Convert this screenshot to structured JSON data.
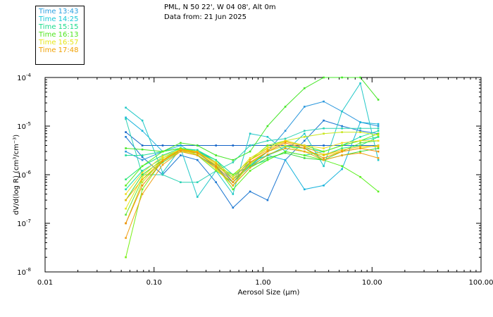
{
  "header": {
    "location": "PML, N 50 22', W 04 08', Alt 0m",
    "date": "Data from: 21 Jun 2025"
  },
  "legend": [
    {
      "label": "Time 13:43",
      "color": "#2aa0e0"
    },
    {
      "label": "Time 14:25",
      "color": "#19c8d8"
    },
    {
      "label": "Time 15:15",
      "color": "#19dc8c"
    },
    {
      "label": "Time 16:13",
      "color": "#4ee61e"
    },
    {
      "label": "Time 16:57",
      "color": "#e6e619"
    },
    {
      "label": "Time 17:48",
      "color": "#f0a000"
    }
  ],
  "chart_data": {
    "type": "line",
    "xscale": "log",
    "yscale": "log",
    "xlabel": "Aerosol Size (μm)",
    "ylabel": "dV/d(log R) (cm³/cm⁻³)",
    "xlim": [
      0.01,
      100
    ],
    "ylim": [
      1e-08,
      0.0001
    ],
    "x_ticks": [
      {
        "value": 0.01,
        "label": "0.01"
      },
      {
        "value": 0.1,
        "label": "0.10"
      },
      {
        "value": 1,
        "label": "1.00"
      },
      {
        "value": 10,
        "label": "10.00"
      },
      {
        "value": 100,
        "label": "100.00"
      }
    ],
    "y_ticks": [
      {
        "value": 1e-08,
        "mantissa": "10",
        "exp": "-8"
      },
      {
        "value": 1e-07,
        "mantissa": "10",
        "exp": "-7"
      },
      {
        "value": 1e-06,
        "mantissa": "10",
        "exp": "-6"
      },
      {
        "value": 1e-05,
        "mantissa": "10",
        "exp": "-5"
      },
      {
        "value": 0.0001,
        "mantissa": "10",
        "exp": "-4"
      }
    ],
    "x": [
      0.055,
      0.078,
      0.12,
      0.175,
      0.25,
      0.37,
      0.53,
      0.76,
      1.1,
      1.6,
      2.4,
      3.6,
      5.3,
      7.8,
      11.4
    ],
    "series": [
      {
        "name": "Time 13:43",
        "color": "#1464c8",
        "values": [
          7.5e-06,
          4e-06,
          4e-06,
          4e-06,
          4e-06,
          4e-06,
          4e-06,
          4e-06,
          4e-06,
          4e-06,
          4e-06,
          4e-06,
          4e-06,
          4e-06,
          4e-06
        ]
      },
      {
        "name": "Time 13:43",
        "color": "#1e78d2",
        "values": [
          6e-06,
          2.3e-06,
          1e-06,
          2.5e-06,
          2e-06,
          7e-07,
          2.1e-07,
          4.5e-07,
          3e-07,
          2e-06,
          5e-06,
          1.3e-05,
          1e-05,
          8e-06,
          7e-06
        ]
      },
      {
        "name": "Time 13:43",
        "color": "#2896dc",
        "values": [
          3e-06,
          2e-06,
          3e-06,
          3.5e-06,
          3e-06,
          1.8e-06,
          7e-07,
          1.5e-06,
          3e-06,
          8e-06,
          2.5e-05,
          3.2e-05,
          2e-05,
          1.2e-05,
          1e-05
        ]
      },
      {
        "name": "Time 14:25",
        "color": "#19b4dc",
        "values": [
          1.5e-05,
          8e-06,
          3e-06,
          4e-06,
          2.5e-06,
          1.5e-06,
          6e-07,
          1.8e-06,
          2.5e-06,
          2e-06,
          5e-07,
          6e-07,
          1.3e-06,
          1.2e-05,
          1.1e-05
        ]
      },
      {
        "name": "Time 14:25",
        "color": "#23c8c8",
        "values": [
          2.4e-05,
          1.3e-05,
          1.1e-06,
          3.5e-06,
          3.5e-07,
          1.2e-06,
          4e-07,
          7e-06,
          6e-06,
          3e-06,
          7e-06,
          1.5e-06,
          2e-05,
          7.6e-05,
          2e-06
        ]
      },
      {
        "name": "Time 14:25",
        "color": "#2dd2b4",
        "values": [
          1.4e-05,
          1e-06,
          1e-06,
          7e-07,
          7e-07,
          1.2e-06,
          1.8e-06,
          4e-06,
          5e-06,
          5.5e-06,
          8e-06,
          9e-06,
          9e-06,
          9e-06,
          9e-06
        ]
      },
      {
        "name": "Time 15:15",
        "color": "#1edc96",
        "values": [
          2.5e-06,
          2.5e-06,
          3e-06,
          3.5e-06,
          3e-06,
          2e-06,
          1e-06,
          1.5e-06,
          2e-06,
          3e-06,
          2.5e-06,
          3e-06,
          4e-06,
          5e-06,
          6e-06
        ]
      },
      {
        "name": "Time 15:15",
        "color": "#28e678",
        "values": [
          8e-07,
          1.5e-06,
          2.5e-06,
          3.5e-06,
          3.2e-06,
          2e-06,
          8e-07,
          1.5e-06,
          2.5e-06,
          3.5e-06,
          3e-06,
          2.5e-06,
          3.5e-06,
          4e-06,
          6e-06
        ]
      },
      {
        "name": "Time 15:15",
        "color": "#14dcaa",
        "values": [
          5e-07,
          1.2e-06,
          2.2e-06,
          3.4e-06,
          3.2e-06,
          1.8e-06,
          9e-07,
          1.8e-06,
          2.5e-06,
          3.8e-06,
          3.5e-06,
          3e-06,
          4e-06,
          6e-06,
          8e-06
        ]
      },
      {
        "name": "Time 16:13",
        "color": "#46e628",
        "values": [
          3.5e-06,
          3.3e-06,
          3e-06,
          4.5e-06,
          4e-06,
          2.5e-06,
          2e-06,
          3e-06,
          1e-05,
          2.5e-05,
          6e-05,
          0.0001,
          0.0001,
          0.0001,
          3.5e-05
        ]
      },
      {
        "name": "Time 16:13",
        "color": "#5af01e",
        "values": [
          6e-07,
          1.5e-06,
          3e-06,
          3.5e-06,
          2.8e-06,
          1.5e-06,
          5e-07,
          1.2e-06,
          2e-06,
          3e-06,
          2.5e-06,
          2e-06,
          1.5e-06,
          9e-07,
          4.5e-07
        ]
      },
      {
        "name": "Time 16:13",
        "color": "#3cdc3c",
        "values": [
          3e-07,
          1e-06,
          2e-06,
          3.2e-06,
          2.6e-06,
          1.4e-06,
          6e-07,
          1.4e-06,
          2.2e-06,
          2.8e-06,
          2.2e-06,
          2e-06,
          2.5e-06,
          3e-06,
          3.5e-06
        ]
      },
      {
        "name": "Time 16:13",
        "color": "#64e632",
        "values": [
          1.5e-07,
          8e-07,
          1.8e-06,
          3e-06,
          2.5e-06,
          1.2e-06,
          7e-07,
          1.6e-06,
          3e-06,
          4e-06,
          3.5e-06,
          2e-06,
          3e-06,
          4.5e-06,
          5e-06
        ]
      },
      {
        "name": "Time 16:13",
        "color": "#78f014",
        "values": [
          2e-08,
          5e-07,
          2e-06,
          3.5e-06,
          3e-06,
          1.5e-06,
          1e-06,
          2e-06,
          4e-06,
          5e-06,
          4e-06,
          3e-06,
          4e-06,
          5e-06,
          7e-06
        ]
      },
      {
        "name": "Time 16:57",
        "color": "#c8e61e",
        "values": [
          1e-07,
          7e-07,
          2e-06,
          3e-06,
          2.8e-06,
          1.6e-06,
          8e-07,
          2e-06,
          3.5e-06,
          5e-06,
          6e-06,
          7e-06,
          7.5e-06,
          7.5e-06,
          6.5e-06
        ]
      },
      {
        "name": "Time 16:57",
        "color": "#e6e614",
        "values": [
          2e-07,
          9e-07,
          2.2e-06,
          3.2e-06,
          2.6e-06,
          1.3e-06,
          6e-07,
          1.7e-06,
          3e-06,
          4e-06,
          3e-06,
          2.5e-06,
          3e-06,
          3.5e-06,
          4e-06
        ]
      },
      {
        "name": "Time 16:57",
        "color": "#f0dc1e",
        "values": [
          4e-07,
          1.1e-06,
          2.4e-06,
          3.3e-06,
          2.9e-06,
          1.8e-06,
          9e-07,
          2.2e-06,
          3.6e-06,
          5e-06,
          4e-06,
          3.5e-06,
          4.5e-06,
          5e-06,
          5e-06
        ]
      },
      {
        "name": "Time 17:48",
        "color": "#f0a014",
        "values": [
          5e-08,
          4e-07,
          1.6e-06,
          3e-06,
          2.5e-06,
          1.4e-06,
          6e-07,
          1.4e-06,
          2.6e-06,
          3.5e-06,
          3e-06,
          2e-06,
          2.5e-06,
          2.8e-06,
          2.2e-06
        ]
      },
      {
        "name": "Time 17:48",
        "color": "#f08c0a",
        "values": [
          1e-07,
          6e-07,
          1.9e-06,
          3.2e-06,
          2.8e-06,
          1.5e-06,
          7e-07,
          1.8e-06,
          3e-06,
          4.5e-06,
          3.5e-06,
          2.2e-06,
          3e-06,
          3.5e-06,
          3e-06
        ]
      },
      {
        "name": "Time 17:48",
        "color": "#f5b400",
        "values": [
          3e-07,
          8e-07,
          2e-06,
          3.3e-06,
          3e-06,
          1.7e-06,
          8e-07,
          2e-06,
          3.2e-06,
          4.8e-06,
          3.8e-06,
          2.6e-06,
          3.2e-06,
          3.8e-06,
          3.8e-06
        ]
      }
    ]
  }
}
